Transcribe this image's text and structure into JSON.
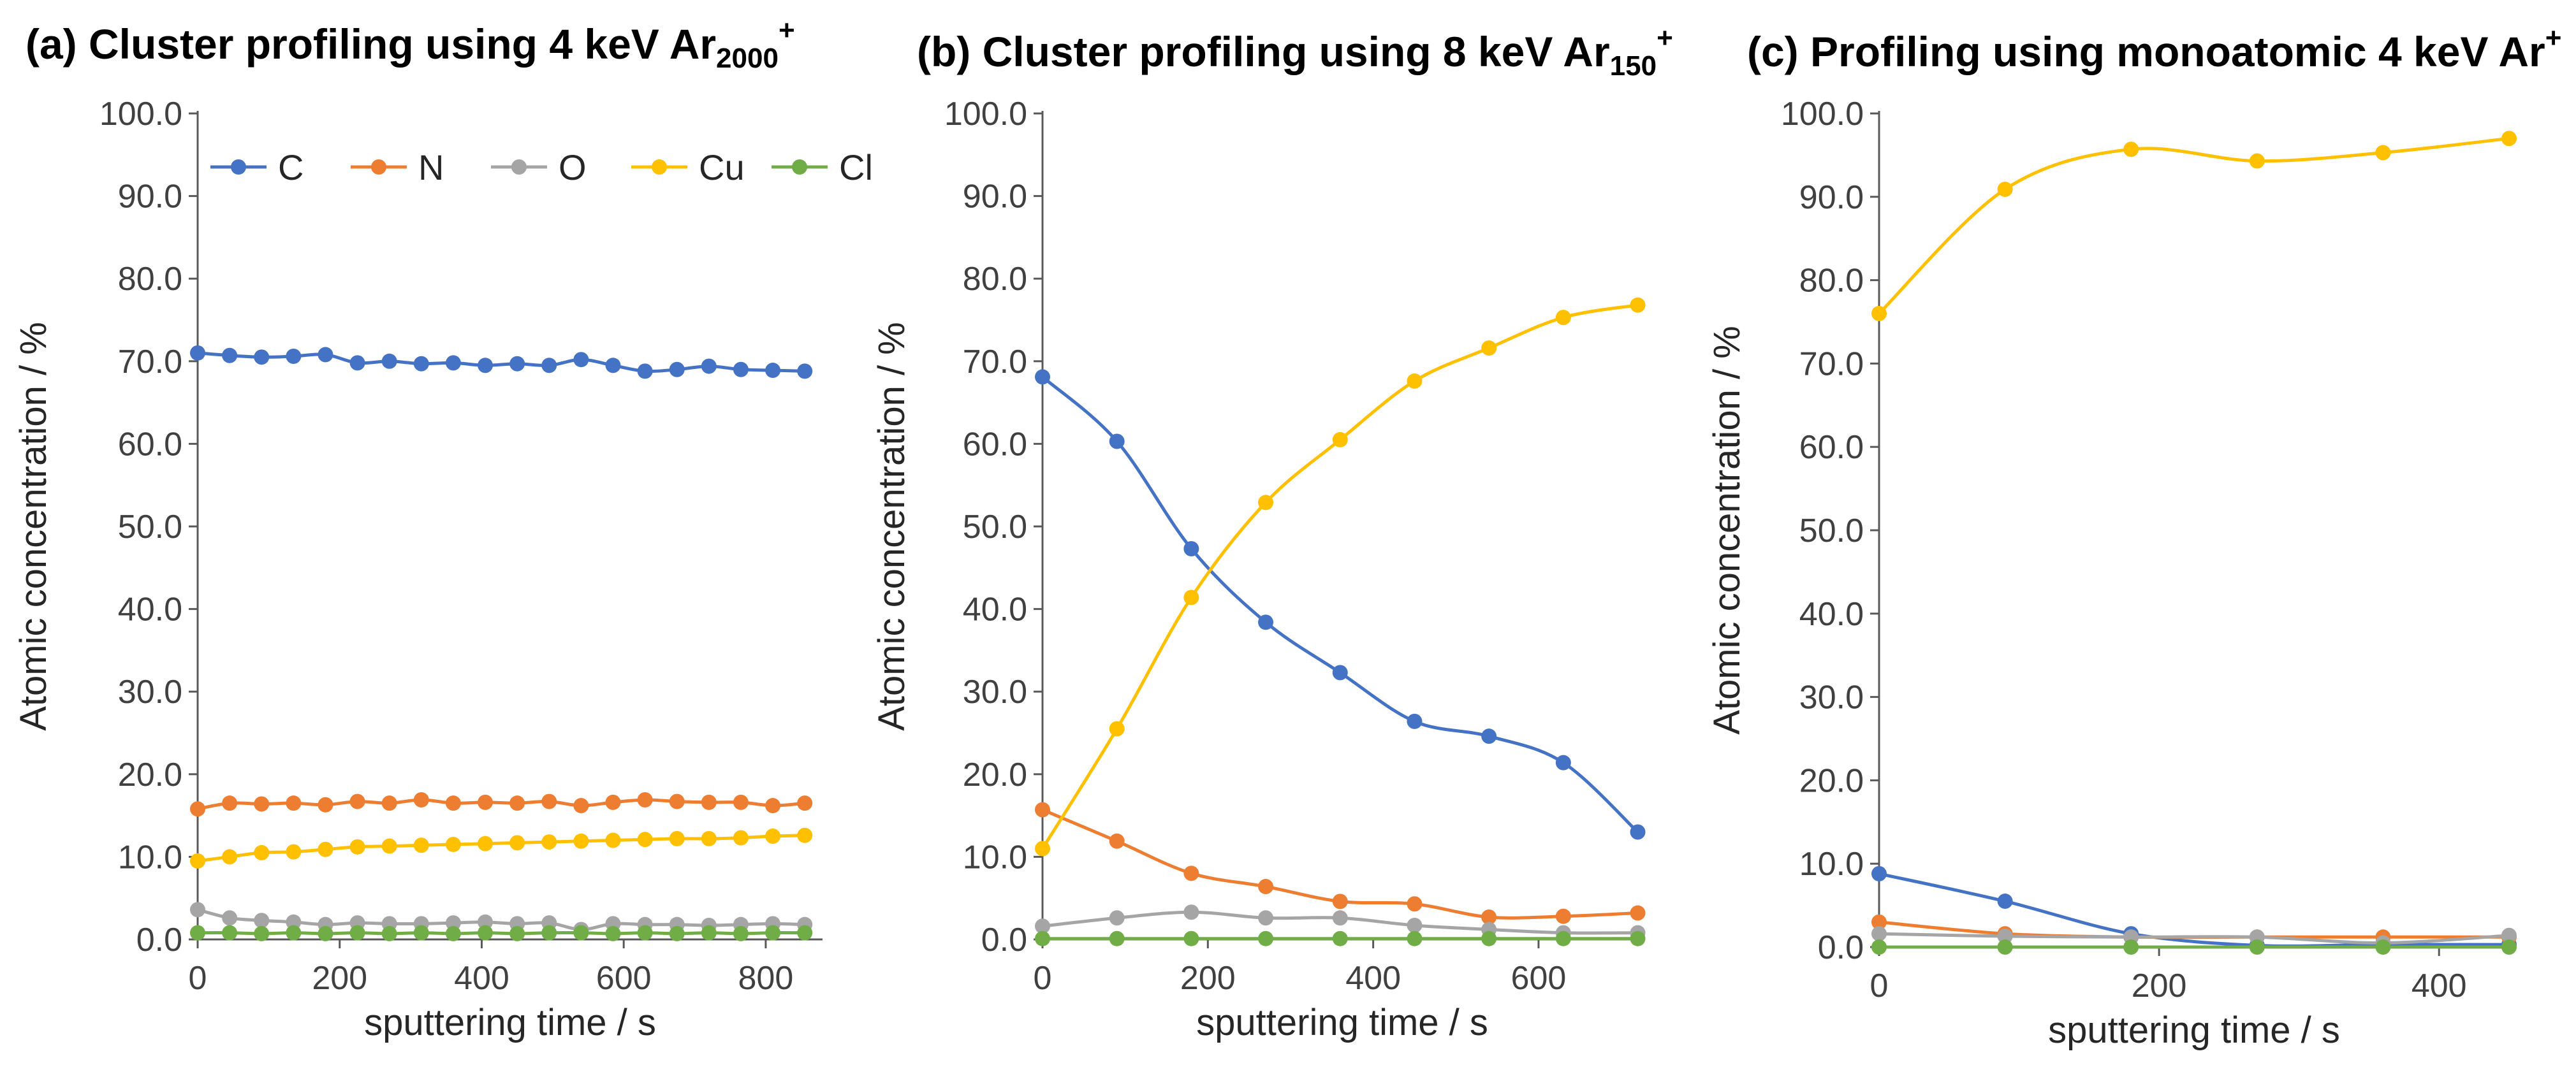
{
  "colors": {
    "C": "#4472C4",
    "N": "#ED7D31",
    "O": "#A5A5A5",
    "Cu": "#FFC000",
    "Cl": "#70AD47",
    "axis": "#595959",
    "text": "#262626"
  },
  "chart_data": [
    {
      "type": "line",
      "title": "(a) Cluster profiling using 4 keV Ar",
      "title_sub": "2000",
      "title_sup": "+",
      "xlabel": "sputtering time / s",
      "ylabel": "Atomic concentration / %",
      "xlim": [
        0,
        880
      ],
      "ylim": [
        0,
        100
      ],
      "xticks": [
        0,
        200,
        400,
        600,
        800
      ],
      "yticks": [
        "0.0",
        "10.0",
        "20.0",
        "30.0",
        "40.0",
        "50.0",
        "60.0",
        "70.0",
        "80.0",
        "90.0",
        "100.0"
      ],
      "legend": true,
      "x": [
        0,
        45,
        90,
        135,
        180,
        225,
        270,
        315,
        360,
        405,
        450,
        495,
        540,
        585,
        630,
        675,
        720,
        765,
        810,
        855
      ],
      "series": [
        {
          "name": "C",
          "values": [
            71.0,
            70.7,
            70.5,
            70.6,
            70.8,
            69.8,
            70.0,
            69.7,
            69.8,
            69.5,
            69.7,
            69.5,
            70.2,
            69.5,
            68.8,
            69.0,
            69.4,
            69.0,
            68.9,
            68.8
          ]
        },
        {
          "name": "N",
          "values": [
            15.8,
            16.5,
            16.4,
            16.5,
            16.3,
            16.7,
            16.5,
            16.9,
            16.5,
            16.6,
            16.5,
            16.7,
            16.2,
            16.6,
            16.9,
            16.7,
            16.6,
            16.6,
            16.2,
            16.5
          ]
        },
        {
          "name": "O",
          "values": [
            3.6,
            2.6,
            2.3,
            2.1,
            1.8,
            2.0,
            1.9,
            1.9,
            2.0,
            2.1,
            1.9,
            2.0,
            1.2,
            1.9,
            1.8,
            1.8,
            1.7,
            1.8,
            1.9,
            1.8
          ]
        },
        {
          "name": "Cu",
          "values": [
            9.5,
            10.0,
            10.5,
            10.6,
            10.9,
            11.2,
            11.3,
            11.4,
            11.5,
            11.6,
            11.7,
            11.8,
            11.9,
            12.0,
            12.1,
            12.2,
            12.2,
            12.3,
            12.5,
            12.6
          ]
        },
        {
          "name": "Cl",
          "values": [
            0.8,
            0.8,
            0.7,
            0.8,
            0.7,
            0.8,
            0.7,
            0.8,
            0.7,
            0.8,
            0.7,
            0.8,
            0.8,
            0.7,
            0.8,
            0.7,
            0.8,
            0.7,
            0.8,
            0.8
          ]
        }
      ]
    },
    {
      "type": "line",
      "title": "(b) Cluster profiling using 8 keV Ar",
      "title_sub": "150",
      "title_sup": "+",
      "xlabel": "sputtering time / s",
      "ylabel": "Atomic concentration / %",
      "xlim": [
        0,
        725
      ],
      "ylim": [
        0,
        100
      ],
      "xticks": [
        0,
        200,
        400,
        600
      ],
      "yticks": [
        "0.0",
        "10.0",
        "20.0",
        "30.0",
        "40.0",
        "50.0",
        "60.0",
        "70.0",
        "80.0",
        "90.0",
        "100.0"
      ],
      "legend": false,
      "x": [
        0,
        90,
        180,
        270,
        360,
        450,
        540,
        630,
        720
      ],
      "series": [
        {
          "name": "C",
          "values": [
            68.1,
            60.3,
            47.3,
            38.4,
            32.3,
            26.4,
            24.6,
            21.4,
            13.0
          ]
        },
        {
          "name": "N",
          "values": [
            15.7,
            11.9,
            8.0,
            6.4,
            4.6,
            4.3,
            2.7,
            2.8,
            3.2
          ]
        },
        {
          "name": "O",
          "values": [
            1.6,
            2.6,
            3.3,
            2.6,
            2.6,
            1.7,
            1.2,
            0.8,
            0.8
          ]
        },
        {
          "name": "Cu",
          "values": [
            11.0,
            25.5,
            41.4,
            52.9,
            60.5,
            67.6,
            71.6,
            75.3,
            76.8
          ]
        },
        {
          "name": "Cl",
          "values": [
            0.1,
            0.1,
            0.1,
            0.1,
            0.1,
            0.1,
            0.1,
            0.1,
            0.1
          ]
        }
      ]
    },
    {
      "type": "line",
      "title": "(c) Profiling using monoatomic 4 keV Ar",
      "title_sub": "",
      "title_sup": "+",
      "xlabel": "sputtering time / s",
      "ylabel": "Atomic concentration / %",
      "xlim": [
        0,
        450
      ],
      "ylim": [
        0,
        100
      ],
      "xticks": [
        0,
        200,
        400
      ],
      "yticks": [
        "0.0",
        "10.0",
        "20.0",
        "30.0",
        "40.0",
        "50.0",
        "60.0",
        "70.0",
        "80.0",
        "90.0",
        "100.0"
      ],
      "legend": false,
      "x": [
        0,
        90,
        180,
        270,
        360,
        450
      ],
      "series": [
        {
          "name": "C",
          "values": [
            8.8,
            5.5,
            1.6,
            0.2,
            0.3,
            0.3
          ]
        },
        {
          "name": "N",
          "values": [
            3.0,
            1.6,
            1.2,
            1.2,
            1.2,
            1.2
          ]
        },
        {
          "name": "O",
          "values": [
            1.6,
            1.3,
            1.2,
            1.2,
            0.5,
            1.4
          ]
        },
        {
          "name": "Cu",
          "values": [
            76.0,
            90.9,
            95.7,
            94.3,
            95.3,
            97.0
          ]
        },
        {
          "name": "Cl",
          "values": [
            0.0,
            0.0,
            0.0,
            0.0,
            0.0,
            0.0
          ]
        }
      ]
    }
  ]
}
